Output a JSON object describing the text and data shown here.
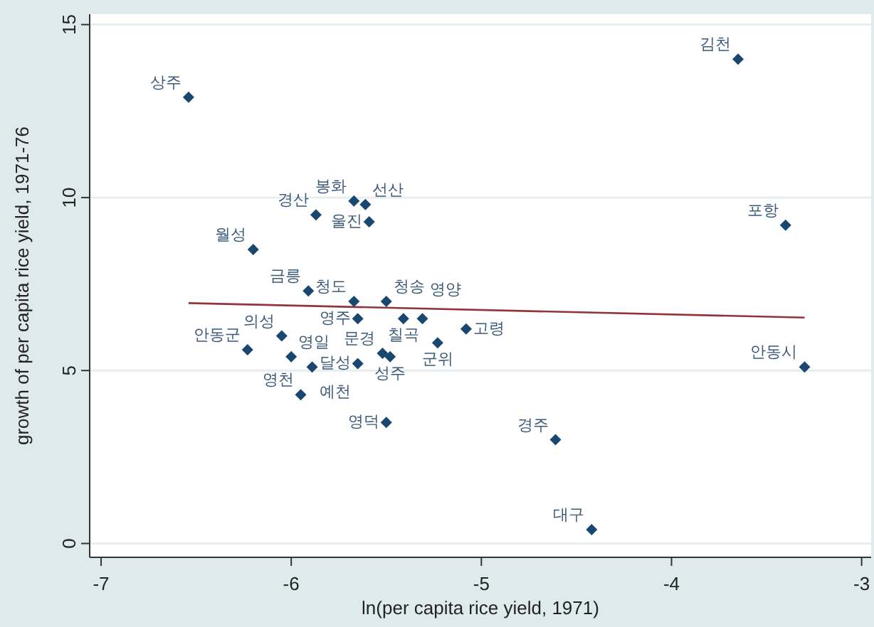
{
  "chart_data": {
    "type": "scatter",
    "xlabel": "ln(per capita rice yield, 1971)",
    "ylabel": "growth of per capita rice yield, 1971-76",
    "xlim": [
      -7.06,
      -2.95
    ],
    "ylim": [
      -0.4,
      15.3
    ],
    "xticks": [
      -7,
      -6,
      -5,
      -4,
      -3
    ],
    "yticks": [
      0,
      5,
      10,
      15
    ],
    "grid": "y",
    "marker": "diamond",
    "series": [
      {
        "color": "#1a476f",
        "x": [
          -6.54,
          -3.65,
          -3.4,
          -3.3,
          -4.61,
          -4.42,
          -5.67,
          -5.61,
          -5.59,
          -5.87,
          -6.2,
          -5.91,
          -5.67,
          -5.5,
          -5.65,
          -5.41,
          -5.31,
          -5.08,
          -5.23,
          -5.52,
          -5.48,
          -5.65,
          -5.89,
          -6.0,
          -6.05,
          -6.23,
          -5.95,
          -5.5
        ],
        "values": [
          12.9,
          14.0,
          9.2,
          5.1,
          3.0,
          0.4,
          9.9,
          9.8,
          9.3,
          9.5,
          8.5,
          7.3,
          7.0,
          7.0,
          6.5,
          6.5,
          6.5,
          6.2,
          5.8,
          5.5,
          5.4,
          5.2,
          5.1,
          5.4,
          6.0,
          5.6,
          4.3,
          3.5
        ]
      },
      {
        "type": "line",
        "marker": "none",
        "color": "#90353b",
        "x": [
          -6.54,
          -3.3
        ],
        "values": [
          6.95,
          6.53
        ]
      }
    ],
    "annotations": [
      {
        "text": "상주",
        "x": -6.54,
        "y": 12.9
      },
      {
        "text": "김천",
        "x": -3.65,
        "y": 14.0
      },
      {
        "text": "포항",
        "x": -3.4,
        "y": 9.2
      },
      {
        "text": "안동시",
        "x": -3.3,
        "y": 5.1
      },
      {
        "text": "경주",
        "x": -4.61,
        "y": 3.0
      },
      {
        "text": "대구",
        "x": -4.42,
        "y": 0.4
      },
      {
        "text": "봉화",
        "x": -5.67,
        "y": 9.9
      },
      {
        "text": "선산",
        "x": -5.61,
        "y": 9.8
      },
      {
        "text": "울진",
        "x": -5.59,
        "y": 9.3
      },
      {
        "text": "경산",
        "x": -5.87,
        "y": 9.5
      },
      {
        "text": "월성",
        "x": -6.2,
        "y": 8.5
      },
      {
        "text": "금릉",
        "x": -5.91,
        "y": 7.3
      },
      {
        "text": "청도",
        "x": -5.67,
        "y": 7.0
      },
      {
        "text": "청송",
        "x": -5.5,
        "y": 7.0
      },
      {
        "text": "영주",
        "x": -5.65,
        "y": 6.5
      },
      {
        "text": "칠곡",
        "x": -5.41,
        "y": 6.5
      },
      {
        "text": "영양",
        "x": -5.31,
        "y": 6.5
      },
      {
        "text": "고령",
        "x": -5.08,
        "y": 6.2
      },
      {
        "text": "군위",
        "x": -5.23,
        "y": 5.8
      },
      {
        "text": "문경",
        "x": -5.52,
        "y": 5.5
      },
      {
        "text": "성주",
        "x": -5.48,
        "y": 5.4
      },
      {
        "text": "달성",
        "x": -5.65,
        "y": 5.2
      },
      {
        "text": "예천",
        "x": -5.89,
        "y": 5.1
      },
      {
        "text": "영일",
        "x": -6.0,
        "y": 5.4
      },
      {
        "text": "의성",
        "x": -6.05,
        "y": 6.0
      },
      {
        "text": "안동군",
        "x": -6.23,
        "y": 5.6
      },
      {
        "text": "영천",
        "x": -5.95,
        "y": 4.3
      },
      {
        "text": "영덕",
        "x": -5.5,
        "y": 3.5
      }
    ]
  }
}
